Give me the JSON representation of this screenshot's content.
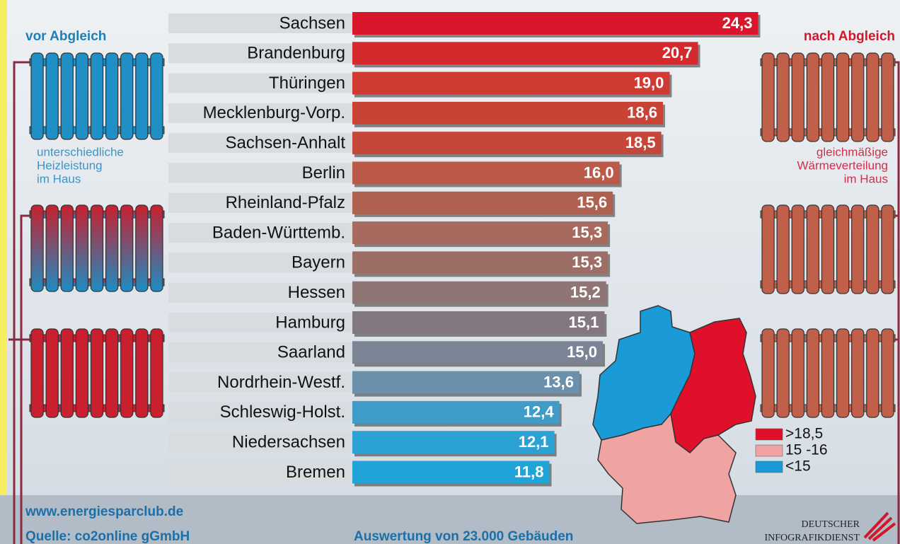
{
  "chart_data": {
    "type": "bar",
    "orientation": "horizontal",
    "categories": [
      "Sachsen",
      "Brandenburg",
      "Thüringen",
      "Mecklenburg-Vorp.",
      "Sachsen-Anhalt",
      "Berlin",
      "Rheinland-Pfalz",
      "Baden-Württemb.",
      "Bayern",
      "Hessen",
      "Hamburg",
      "Saarland",
      "Nordrhein-Westf.",
      "Schleswig-Holst.",
      "Niedersachsen",
      "Bremen"
    ],
    "values": [
      24.3,
      20.7,
      19.0,
      18.6,
      18.5,
      16.0,
      15.6,
      15.3,
      15.3,
      15.2,
      15.1,
      15.0,
      13.6,
      12.4,
      12.1,
      11.8
    ],
    "value_labels": [
      "24,3",
      "20,7",
      "19,0",
      "18,6",
      "18,5",
      "16,0",
      "15,6",
      "15,3",
      "15,3",
      "15,2",
      "15,1",
      "15,0",
      "13,6",
      "12,4",
      "12,1",
      "11,8"
    ],
    "colors": [
      "#d9162b",
      "#d42a2e",
      "#cf3a32",
      "#c94236",
      "#c5473a",
      "#bb5a48",
      "#b0604f",
      "#a66a5e",
      "#9c6e66",
      "#8f7574",
      "#847880",
      "#7a8494",
      "#6a90ac",
      "#3f9bc8",
      "#2ca2d4",
      "#20a4d8"
    ]
  },
  "left_panel": {
    "title": "vor Abgleich",
    "caption": [
      "unterschiedliche",
      "Heizleistung",
      "im Haus"
    ]
  },
  "right_panel": {
    "title": "nach Abgleich",
    "caption": [
      "gleichmäßige",
      "Wärmeverteilung",
      "im Haus"
    ]
  },
  "map_legend": [
    {
      "label": ">18,5",
      "color": "#e0102a"
    },
    {
      "label": "15 -16",
      "color": "#f0a3a3"
    },
    {
      "label": "<15",
      "color": "#1a9ad6"
    }
  ],
  "footer": {
    "url": "www.energiesparclub.de",
    "source": "Quelle: co2online gGmbH",
    "note": "Auswertung von 23.000 Gebäuden",
    "brand": [
      "DEUTSCHER",
      "INFOGRAFIKDIENST"
    ]
  }
}
